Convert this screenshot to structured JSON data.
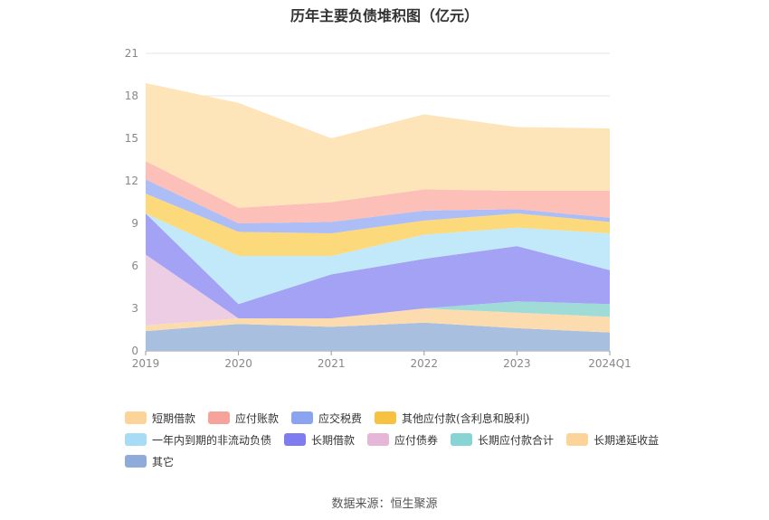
{
  "title": "历年主要负债堆积图（亿元）",
  "source": "数据来源：恒生聚源",
  "chart_data": {
    "type": "area",
    "stacked": true,
    "x": [
      "2019",
      "2020",
      "2021",
      "2022",
      "2023",
      "2024Q1"
    ],
    "ylim": [
      0,
      21
    ],
    "yticks": [
      0,
      3,
      6,
      9,
      12,
      15,
      18,
      21
    ],
    "grid": true,
    "legend_position": "bottom",
    "series": [
      {
        "name": "其它",
        "color": "#a8bfe0",
        "values": [
          1.4,
          1.9,
          1.7,
          2.0,
          1.6,
          1.3
        ]
      },
      {
        "name": "长期递延收益",
        "color": "#fcdcae",
        "values": [
          0.4,
          0.4,
          0.6,
          1.0,
          1.1,
          1.1
        ]
      },
      {
        "name": "长期应付款合计",
        "color": "#9fdcd8",
        "values": [
          0.0,
          0.0,
          0.0,
          0.0,
          0.8,
          0.9
        ]
      },
      {
        "name": "应付债券",
        "color": "#eccde3",
        "values": [
          5.0,
          0.0,
          0.0,
          0.0,
          0.0,
          0.0
        ]
      },
      {
        "name": "长期借款",
        "color": "#a3a2f5",
        "values": [
          2.9,
          1.0,
          3.1,
          3.5,
          3.9,
          2.4
        ]
      },
      {
        "name": "一年内到期的非流动负债",
        "color": "#c2e9f9",
        "values": [
          0.0,
          3.4,
          1.3,
          1.7,
          1.3,
          2.6
        ]
      },
      {
        "name": "其他应付款(含利息和股利)",
        "color": "#fcd97a",
        "values": [
          1.4,
          1.7,
          1.6,
          1.0,
          1.0,
          0.8
        ]
      },
      {
        "name": "应交税费",
        "color": "#adbdf6",
        "values": [
          1.0,
          0.6,
          0.8,
          0.7,
          0.3,
          0.3
        ]
      },
      {
        "name": "应付账款",
        "color": "#fcc0b8",
        "values": [
          1.3,
          1.1,
          1.4,
          1.5,
          1.3,
          1.9
        ]
      },
      {
        "name": "短期借款",
        "color": "#fde4b9",
        "values": [
          5.5,
          7.4,
          4.5,
          5.3,
          4.5,
          4.4
        ]
      }
    ],
    "legend": [
      {
        "name": "短期借款",
        "color": "#fcd49a"
      },
      {
        "name": "应付账款",
        "color": "#f6a39b"
      },
      {
        "name": "应交税费",
        "color": "#8aa4f0"
      },
      {
        "name": "其他应付款(含利息和股利)",
        "color": "#f7c242"
      },
      {
        "name": "一年内到期的非流动负债",
        "color": "#a6dcf5"
      },
      {
        "name": "长期借款",
        "color": "#7f7cf0"
      },
      {
        "name": "应付债券",
        "color": "#e6b6d8"
      },
      {
        "name": "长期应付款合计",
        "color": "#86d4d3"
      },
      {
        "name": "长期递延收益",
        "color": "#fcd49a"
      },
      {
        "name": "其它",
        "color": "#8fabdc"
      }
    ]
  }
}
